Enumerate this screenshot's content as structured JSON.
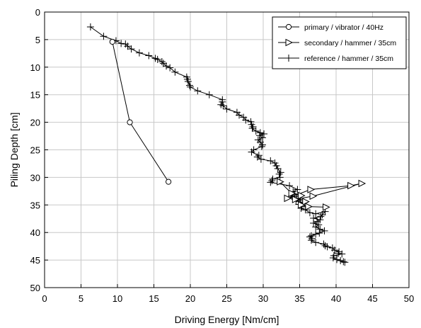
{
  "chart_data": {
    "type": "line",
    "xlabel": "Driving Energy [Nm/cm]",
    "ylabel": "Piling Depth [cm]",
    "xlim": [
      0,
      50
    ],
    "ylim": [
      0,
      50
    ],
    "y_inverted": true,
    "x_ticks": [
      0,
      5,
      10,
      15,
      20,
      25,
      30,
      35,
      40,
      45,
      50
    ],
    "y_ticks": [
      0,
      5,
      10,
      15,
      20,
      25,
      30,
      35,
      40,
      45,
      50
    ],
    "grid": true,
    "legend_position": "top-right",
    "series": [
      {
        "name": "primary / vibrator / 40Hz",
        "marker": "circle",
        "points": [
          [
            9.3,
            5.4
          ],
          [
            11.7,
            20.0
          ],
          [
            17.0,
            30.8
          ]
        ]
      },
      {
        "name": "secondary / hammer / 35cm",
        "marker": "triangle-right",
        "points": [
          [
            32.3,
            30.8
          ],
          [
            33.9,
            32.9
          ],
          [
            35.2,
            33.3
          ],
          [
            33.3,
            33.8
          ],
          [
            36.5,
            32.2
          ],
          [
            42.0,
            31.5
          ],
          [
            43.5,
            31.1
          ],
          [
            36.8,
            33.4
          ],
          [
            34.4,
            34.0
          ],
          [
            35.8,
            34.4
          ],
          [
            35.2,
            35.0
          ],
          [
            36.2,
            35.3
          ],
          [
            38.6,
            35.4
          ]
        ]
      },
      {
        "name": "reference / hammer / 35cm",
        "marker": "plus",
        "points": [
          [
            6.3,
            2.7
          ],
          [
            8.1,
            4.4
          ],
          [
            9.8,
            5.2
          ],
          [
            10.5,
            5.7
          ],
          [
            11.1,
            5.8
          ],
          [
            11.4,
            6.2
          ],
          [
            11.9,
            6.7
          ],
          [
            13.0,
            7.4
          ],
          [
            14.3,
            7.9
          ],
          [
            15.2,
            8.4
          ],
          [
            15.5,
            8.6
          ],
          [
            16.1,
            9.0
          ],
          [
            16.3,
            9.3
          ],
          [
            16.7,
            9.8
          ],
          [
            17.2,
            10.1
          ],
          [
            17.9,
            10.9
          ],
          [
            19.5,
            11.8
          ],
          [
            19.6,
            12.2
          ],
          [
            19.7,
            12.6
          ],
          [
            19.9,
            13.3
          ],
          [
            20.0,
            13.6
          ],
          [
            21.0,
            14.3
          ],
          [
            22.6,
            15.0
          ],
          [
            24.4,
            15.9
          ],
          [
            24.4,
            16.3
          ],
          [
            24.2,
            16.8
          ],
          [
            24.5,
            17.0
          ],
          [
            25.0,
            17.6
          ],
          [
            26.4,
            18.2
          ],
          [
            26.7,
            18.7
          ],
          [
            27.3,
            19.1
          ],
          [
            27.6,
            19.6
          ],
          [
            28.3,
            19.9
          ],
          [
            28.4,
            20.4
          ],
          [
            28.6,
            20.8
          ],
          [
            28.5,
            21.1
          ],
          [
            29.0,
            21.6
          ],
          [
            29.6,
            21.9
          ],
          [
            30.1,
            22.1
          ],
          [
            29.5,
            22.4
          ],
          [
            29.9,
            22.8
          ],
          [
            29.3,
            23.2
          ],
          [
            29.6,
            23.6
          ],
          [
            29.9,
            24.1
          ],
          [
            29.8,
            24.4
          ],
          [
            28.7,
            25.0
          ],
          [
            28.4,
            25.4
          ],
          [
            29.4,
            26.0
          ],
          [
            29.2,
            26.3
          ],
          [
            29.7,
            26.7
          ],
          [
            31.0,
            27.0
          ],
          [
            31.6,
            27.4
          ],
          [
            31.8,
            27.9
          ],
          [
            32.0,
            28.4
          ],
          [
            32.4,
            29.1
          ],
          [
            32.2,
            29.4
          ],
          [
            32.3,
            30.0
          ],
          [
            31.3,
            30.3
          ],
          [
            31.2,
            30.6
          ],
          [
            31.0,
            30.9
          ],
          [
            33.6,
            31.5
          ],
          [
            34.7,
            32.2
          ],
          [
            34.1,
            32.6
          ],
          [
            34.3,
            33.0
          ],
          [
            33.9,
            33.4
          ],
          [
            34.6,
            33.8
          ],
          [
            35.1,
            34.0
          ],
          [
            34.5,
            34.3
          ],
          [
            35.6,
            34.6
          ],
          [
            34.9,
            34.9
          ],
          [
            35.3,
            35.3
          ],
          [
            35.2,
            35.6
          ],
          [
            35.8,
            35.9
          ],
          [
            36.4,
            36.4
          ],
          [
            37.2,
            36.6
          ],
          [
            38.5,
            36.2
          ],
          [
            38.1,
            36.8
          ],
          [
            37.9,
            37.1
          ],
          [
            36.9,
            37.4
          ],
          [
            37.8,
            37.7
          ],
          [
            37.4,
            38.0
          ],
          [
            36.9,
            38.3
          ],
          [
            37.6,
            38.6
          ],
          [
            37.2,
            39.0
          ],
          [
            37.8,
            39.4
          ],
          [
            38.4,
            39.7
          ],
          [
            37.7,
            40.1
          ],
          [
            37.2,
            40.3
          ],
          [
            36.6,
            40.6
          ],
          [
            36.4,
            40.8
          ],
          [
            36.7,
            41.1
          ],
          [
            36.6,
            41.4
          ],
          [
            37.2,
            41.8
          ],
          [
            38.3,
            42.1
          ],
          [
            38.5,
            42.4
          ],
          [
            38.8,
            42.6
          ],
          [
            39.5,
            42.8
          ],
          [
            39.8,
            43.2
          ],
          [
            40.4,
            43.5
          ],
          [
            40.3,
            43.8
          ],
          [
            40.8,
            43.9
          ],
          [
            39.7,
            44.2
          ],
          [
            39.6,
            44.6
          ],
          [
            40.1,
            44.9
          ],
          [
            40.6,
            45.1
          ],
          [
            41.0,
            45.3
          ],
          [
            41.2,
            45.4
          ]
        ]
      }
    ]
  }
}
